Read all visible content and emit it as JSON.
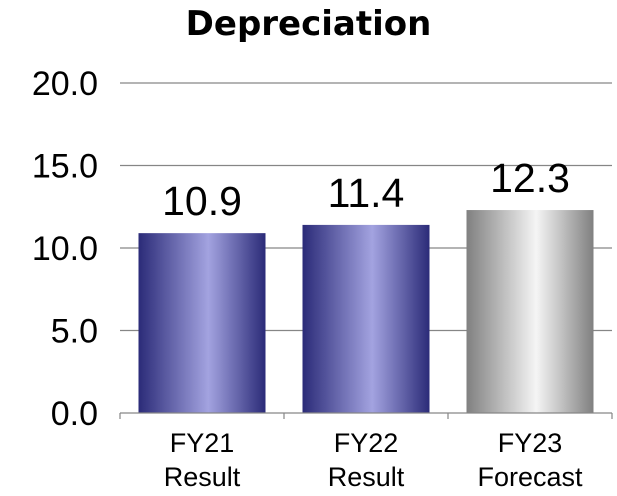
{
  "chart_data": {
    "type": "bar",
    "title": "Depreciation",
    "categories": [
      [
        "FY21",
        "Result"
      ],
      [
        "FY22",
        "Result"
      ],
      [
        "FY23",
        "Forecast"
      ]
    ],
    "values": [
      10.9,
      11.4,
      12.3
    ],
    "value_labels": [
      "10.9",
      "11.4",
      "12.3"
    ],
    "bar_styles": [
      "result",
      "result",
      "forecast"
    ],
    "y_ticks": [
      "0.0",
      "5.0",
      "10.0",
      "15.0",
      "20.0"
    ],
    "ylim": [
      0,
      20
    ],
    "grid": true,
    "legend": "none",
    "colors": {
      "result_dark": "#2b2b78",
      "result_light": "#a3a3e0",
      "forecast_dark": "#808080",
      "forecast_light": "#f5f5f5",
      "grid": "#868686"
    }
  }
}
